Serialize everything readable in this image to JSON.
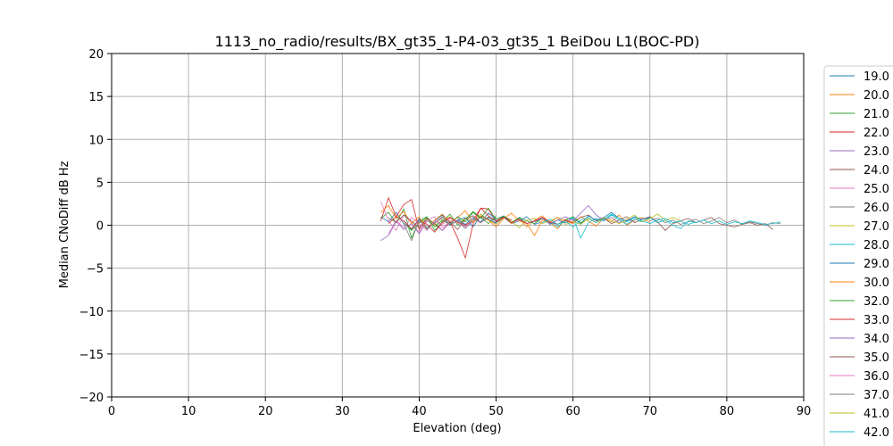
{
  "chart_data": {
    "type": "line",
    "title": "1113_no_radio/results/BX_gt35_1-P4-03_gt35_1 BeiDou L1(BOC-PD)",
    "xlabel": "Elevation (deg)",
    "ylabel": "Median CNoDiff dB Hz",
    "xlim": [
      0,
      90
    ],
    "ylim": [
      -20,
      20
    ],
    "xticks": [
      0,
      10,
      20,
      30,
      40,
      50,
      60,
      70,
      80,
      90
    ],
    "yticks": [
      -20,
      -15,
      -10,
      -5,
      0,
      5,
      10,
      15,
      20
    ],
    "grid": true,
    "legend_position": "right, outside plot area, clipped at bottom",
    "series": [
      {
        "name": "19.0",
        "color": "#1f77b4",
        "x": [
          35,
          36,
          37,
          38,
          39,
          40,
          41,
          42,
          43,
          44,
          45,
          46,
          47,
          48,
          49,
          50,
          51,
          52,
          53,
          54,
          55,
          56
        ],
        "values": [
          1.0,
          0.4,
          1.5,
          0.2,
          -0.5,
          0.8,
          -0.3,
          0.5,
          1.2,
          0.0,
          0.6,
          0.9,
          -0.2,
          1.1,
          0.7,
          0.3,
          0.9,
          0.2,
          0.5,
          1.0,
          0.1,
          0.4
        ]
      },
      {
        "name": "20.0",
        "color": "#ff7f0e",
        "x": [
          50,
          51,
          52,
          53,
          54,
          55,
          56,
          57,
          58,
          59,
          60,
          61,
          62,
          63,
          64,
          65,
          66,
          67,
          68,
          69,
          70
        ],
        "values": [
          0.5,
          1.0,
          0.2,
          0.8,
          -0.2,
          0.6,
          1.1,
          0.3,
          -0.4,
          0.7,
          0.2,
          1.0,
          0.5,
          -0.1,
          0.8,
          0.4,
          1.2,
          0.0,
          0.6,
          0.9,
          0.3
        ]
      },
      {
        "name": "21.0",
        "color": "#2ca02c",
        "x": [
          35,
          36,
          37,
          38,
          39,
          40,
          41,
          42,
          43,
          44,
          45,
          46,
          47,
          48,
          49,
          50
        ],
        "values": [
          0.8,
          1.5,
          0.3,
          1.9,
          -1.5,
          0.5,
          1.0,
          -0.6,
          0.4,
          1.3,
          0.0,
          0.7,
          1.6,
          0.9,
          0.2,
          1.1
        ]
      },
      {
        "name": "22.0",
        "color": "#d62728",
        "x": [
          35,
          36,
          37,
          38,
          39,
          40,
          41,
          42,
          43,
          44,
          45,
          46,
          47,
          48,
          49,
          50,
          51,
          52
        ],
        "values": [
          0.5,
          3.2,
          1.0,
          2.4,
          3.0,
          -0.5,
          0.8,
          0.2,
          -0.6,
          0.4,
          -1.5,
          -3.8,
          0.1,
          2.0,
          1.9,
          0.4,
          1.0,
          0.6
        ]
      },
      {
        "name": "23.0",
        "color": "#9467bd",
        "x": [
          35,
          36,
          37,
          38,
          39,
          40,
          41,
          42,
          43,
          44,
          45,
          46,
          47,
          48,
          49,
          50
        ],
        "values": [
          -1.8,
          -1.2,
          0.4,
          -0.5,
          0.2,
          -1.0,
          0.5,
          0.1,
          -0.6,
          0.3,
          0.9,
          -0.2,
          0.4,
          1.0,
          0.6,
          0.2
        ]
      },
      {
        "name": "24.0",
        "color": "#8c564b",
        "x": [
          60,
          61,
          62,
          63,
          64,
          65,
          66,
          67,
          68,
          69,
          70,
          71,
          72,
          73,
          74,
          75,
          76,
          77,
          78,
          79,
          80,
          81,
          82,
          83,
          84,
          85,
          86
        ],
        "values": [
          0.4,
          0.9,
          1.2,
          0.5,
          0.8,
          0.2,
          0.6,
          1.0,
          0.3,
          0.7,
          1.0,
          0.4,
          -0.6,
          0.2,
          0.5,
          0.8,
          0.3,
          0.6,
          0.9,
          0.2,
          0.0,
          -0.2,
          0.1,
          0.3,
          0.0,
          0.2,
          -0.5
        ]
      },
      {
        "name": "25.0",
        "color": "#e377c2",
        "x": [
          35,
          36,
          37,
          38,
          39,
          40,
          41,
          42,
          43,
          44,
          45
        ],
        "values": [
          2.8,
          0.5,
          -0.6,
          1.2,
          0.3,
          -0.8,
          0.6,
          1.0,
          -0.3,
          0.5,
          0.2
        ]
      },
      {
        "name": "26.0",
        "color": "#7f7f7f",
        "x": [
          70,
          71,
          72,
          73,
          74,
          75,
          76,
          77,
          78,
          79,
          80,
          81,
          82,
          83,
          84,
          85,
          86,
          87
        ],
        "values": [
          0.5,
          0.8,
          0.3,
          0.6,
          0.1,
          0.4,
          0.7,
          0.2,
          0.5,
          0.9,
          0.3,
          0.6,
          0.1,
          0.4,
          0.2,
          0.0,
          0.3,
          0.2
        ]
      },
      {
        "name": "27.0",
        "color": "#bcbd22",
        "x": [
          40,
          41,
          42,
          43,
          44,
          45,
          46,
          47,
          48,
          49,
          50,
          51,
          52,
          53,
          54,
          55,
          56,
          57,
          58,
          59,
          60
        ],
        "values": [
          0.3,
          0.7,
          0.0,
          0.5,
          1.0,
          0.2,
          0.8,
          0.4,
          1.3,
          0.6,
          0.1,
          0.9,
          0.5,
          -0.3,
          0.6,
          0.8,
          0.2,
          0.5,
          0.9,
          0.1,
          0.4
        ]
      },
      {
        "name": "28.0",
        "color": "#17becf",
        "x": [
          55,
          56,
          57,
          58,
          59,
          60,
          61,
          62,
          63,
          64,
          65,
          66,
          67,
          68,
          69,
          70,
          71,
          72,
          73,
          74,
          75,
          76,
          77,
          78,
          79,
          80,
          81,
          82,
          83,
          84,
          85,
          86,
          87
        ],
        "values": [
          0.2,
          0.8,
          0.4,
          -0.2,
          0.6,
          0.9,
          -1.5,
          0.3,
          0.8,
          0.5,
          1.2,
          0.6,
          0.1,
          0.7,
          0.4,
          0.9,
          0.3,
          0.6,
          0.0,
          -0.4,
          0.5,
          0.3,
          0.6,
          0.2,
          0.5,
          0.1,
          0.4,
          0.2,
          0.5,
          0.3,
          0.1,
          0.2,
          0.4
        ]
      },
      {
        "name": "29.0",
        "color": "#1f77b4",
        "x": [
          45,
          46,
          47,
          48,
          49,
          50,
          51,
          52,
          53,
          54,
          55,
          56,
          57,
          58,
          59,
          60,
          61,
          62,
          63,
          64,
          65,
          66,
          67,
          68,
          69,
          70
        ],
        "values": [
          0.6,
          0.1,
          0.9,
          0.4,
          1.4,
          0.7,
          1.0,
          0.3,
          0.8,
          0.2,
          0.5,
          0.9,
          0.1,
          0.6,
          0.3,
          0.8,
          0.2,
          1.1,
          0.6,
          0.9,
          1.5,
          0.8,
          0.5,
          1.0,
          0.7,
          0.9
        ]
      },
      {
        "name": "30.0",
        "color": "#ff7f0e",
        "x": [
          35,
          36,
          37,
          38,
          39,
          40,
          41,
          42,
          43,
          44,
          45,
          46,
          47,
          48,
          49,
          50,
          51,
          52,
          53,
          54,
          55,
          56,
          57,
          58,
          59,
          60
        ],
        "values": [
          1.5,
          2.3,
          0.8,
          1.6,
          0.2,
          1.0,
          -0.5,
          0.6,
          1.3,
          0.4,
          0.9,
          1.7,
          0.3,
          1.1,
          0.6,
          -0.2,
          0.8,
          1.4,
          0.5,
          0.2,
          -1.2,
          0.6,
          0.3,
          0.9,
          0.5,
          0.2
        ]
      },
      {
        "name": "32.0",
        "color": "#2ca02c",
        "x": [
          38,
          39,
          40,
          41,
          42,
          43,
          44,
          45,
          46,
          47,
          48,
          49,
          50,
          51,
          52,
          53,
          54,
          55,
          56,
          57,
          58,
          59,
          60,
          61,
          62
        ],
        "values": [
          0.5,
          -0.6,
          0.3,
          0.9,
          -0.2,
          0.6,
          0.1,
          1.0,
          0.4,
          1.5,
          0.8,
          2.0,
          0.7,
          1.1,
          0.3,
          0.9,
          0.5,
          0.2,
          0.8,
          0.4,
          0.1,
          0.6,
          1.0,
          0.3,
          0.7
        ]
      },
      {
        "name": "33.0",
        "color": "#d62728",
        "x": [
          36,
          37,
          38,
          39,
          40,
          41,
          42,
          43,
          44,
          45,
          46,
          47,
          48,
          49,
          50,
          51,
          52,
          53,
          54,
          55,
          56,
          57,
          58,
          59,
          60
        ],
        "values": [
          0.2,
          1.0,
          0.5,
          -0.4,
          0.6,
          0.1,
          -0.8,
          0.3,
          0.9,
          0.4,
          0.0,
          0.6,
          2.0,
          1.1,
          0.5,
          0.9,
          0.3,
          0.7,
          0.2,
          0.5,
          0.9,
          0.4,
          0.1,
          0.6,
          0.3
        ]
      },
      {
        "name": "34.0",
        "color": "#9467bd",
        "x": [
          55,
          56,
          57,
          58,
          59,
          60,
          61,
          62,
          63,
          64,
          65,
          66,
          67,
          68
        ],
        "values": [
          0.4,
          0.8,
          0.2,
          0.6,
          1.0,
          0.5,
          1.4,
          2.3,
          1.2,
          0.6,
          0.9,
          0.3,
          0.7,
          0.4
        ]
      },
      {
        "name": "35.0",
        "color": "#8c564b",
        "x": [
          36,
          37,
          38,
          39,
          40,
          41,
          42,
          43,
          44,
          45,
          46,
          47,
          48,
          49,
          50
        ],
        "values": [
          0.9,
          0.3,
          1.2,
          0.5,
          -0.3,
          0.8,
          0.2,
          1.0,
          0.4,
          -0.5,
          0.7,
          1.1,
          0.3,
          0.9,
          0.5
        ]
      },
      {
        "name": "36.0",
        "color": "#e377c2",
        "x": [
          36,
          37,
          38,
          39,
          40,
          41,
          42,
          43,
          44,
          45,
          46,
          47,
          48
        ],
        "values": [
          -1.0,
          0.6,
          -0.3,
          0.9,
          0.2,
          -0.6,
          0.5,
          0.1,
          0.8,
          0.3,
          -0.2,
          0.6,
          0.4
        ]
      },
      {
        "name": "37.0",
        "color": "#7f7f7f",
        "x": [
          38,
          39,
          40,
          41,
          42,
          43,
          44,
          45,
          46,
          47,
          48,
          49,
          50
        ],
        "values": [
          0.2,
          -1.8,
          0.6,
          -0.5,
          0.3,
          0.8,
          0.1,
          0.5,
          -0.4,
          0.7,
          0.3,
          1.0,
          0.6
        ]
      },
      {
        "name": "41.0",
        "color": "#bcbd22",
        "x": [
          60,
          61,
          62,
          63,
          64,
          65,
          66,
          67,
          68,
          69,
          70,
          71,
          72,
          73,
          74
        ],
        "values": [
          0.5,
          0.1,
          0.8,
          0.3,
          0.9,
          0.6,
          0.2,
          0.7,
          1.2,
          0.4,
          0.8,
          1.3,
          0.6,
          0.9,
          0.5
        ]
      },
      {
        "name": "42.0",
        "color": "#17becf",
        "x": [
          56,
          57,
          58,
          59,
          60,
          61,
          62,
          63,
          64,
          65,
          66,
          67,
          68,
          69,
          70,
          71,
          72,
          73,
          74,
          75,
          76
        ],
        "values": [
          0.3,
          0.7,
          0.1,
          0.5,
          -0.2,
          0.6,
          0.9,
          0.3,
          0.7,
          1.3,
          0.8,
          0.4,
          0.9,
          0.5,
          0.2,
          0.6,
          0.8,
          0.3,
          0.5,
          0.1,
          0.4
        ]
      }
    ]
  }
}
